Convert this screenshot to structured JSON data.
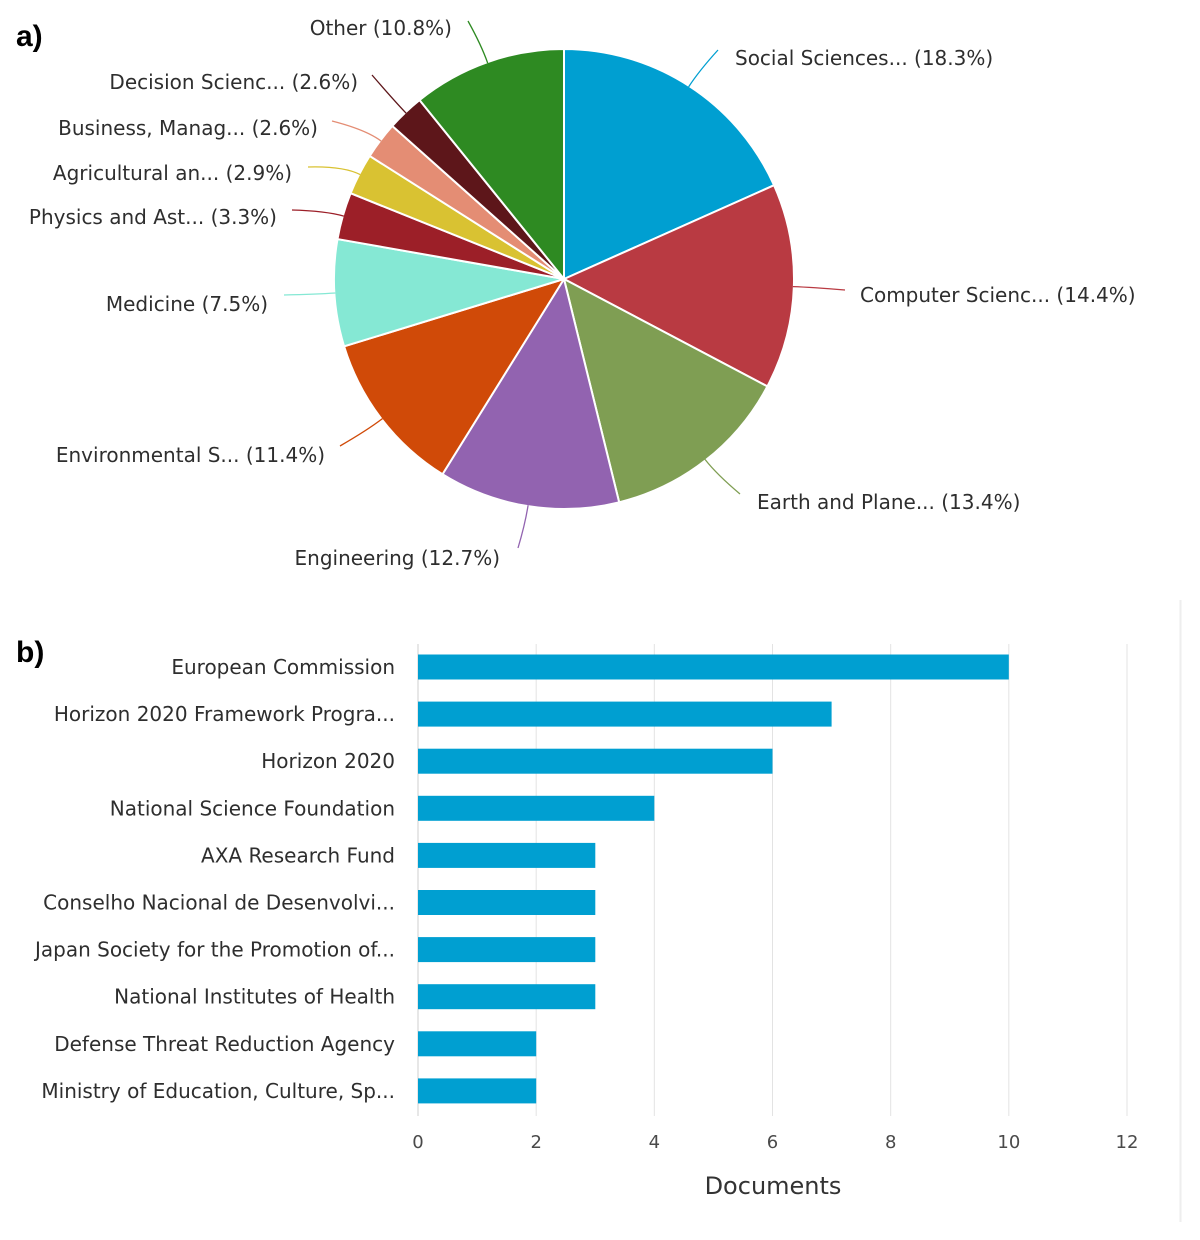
{
  "chart_data": [
    {
      "panel_label": "a)",
      "type": "pie",
      "slices": [
        {
          "label": "Social Sciences... (18.3%)",
          "value": 18.3,
          "color": "#009fd1"
        },
        {
          "label": "Computer Scienc... (14.4%)",
          "value": 14.4,
          "color": "#b93a42"
        },
        {
          "label": "Earth and Plane... (13.4%)",
          "value": 13.4,
          "color": "#7f9e53"
        },
        {
          "label": "Engineering (12.7%)",
          "value": 12.7,
          "color": "#9263b0"
        },
        {
          "label": "Environmental S... (11.4%)",
          "value": 11.4,
          "color": "#d04a08"
        },
        {
          "label": "Medicine (7.5%)",
          "value": 7.5,
          "color": "#85e8d4"
        },
        {
          "label": "Physics and Ast... (3.3%)",
          "value": 3.3,
          "color": "#9c1f28"
        },
        {
          "label": "Agricultural an... (2.9%)",
          "value": 2.9,
          "color": "#d9c232"
        },
        {
          "label": "Business, Manag... (2.6%)",
          "value": 2.6,
          "color": "#e48d74"
        },
        {
          "label": "Decision Scienc... (2.6%)",
          "value": 2.6,
          "color": "#5d161a"
        },
        {
          "label": "Other (10.8%)",
          "value": 10.8,
          "color": "#2e8a22"
        }
      ]
    },
    {
      "panel_label": "b)",
      "type": "bar",
      "orientation": "horizontal",
      "categories": [
        "European Commission",
        "Horizon 2020 Framework Progra...",
        "Horizon 2020",
        "National Science Foundation",
        "AXA Research Fund",
        "Conselho Nacional de Desenvolvi...",
        "Japan Society for the Promotion of...",
        "National Institutes of Health",
        "Defense Threat Reduction Agency",
        "Ministry of Education, Culture, Sp..."
      ],
      "values": [
        10,
        7,
        6,
        4,
        3,
        3,
        3,
        3,
        2,
        2
      ],
      "xlabel": "Documents",
      "xlim": [
        0,
        12
      ],
      "xticks": [
        0,
        2,
        4,
        6,
        8,
        10,
        12
      ],
      "grid": true,
      "bar_color": "#009fd1"
    }
  ]
}
